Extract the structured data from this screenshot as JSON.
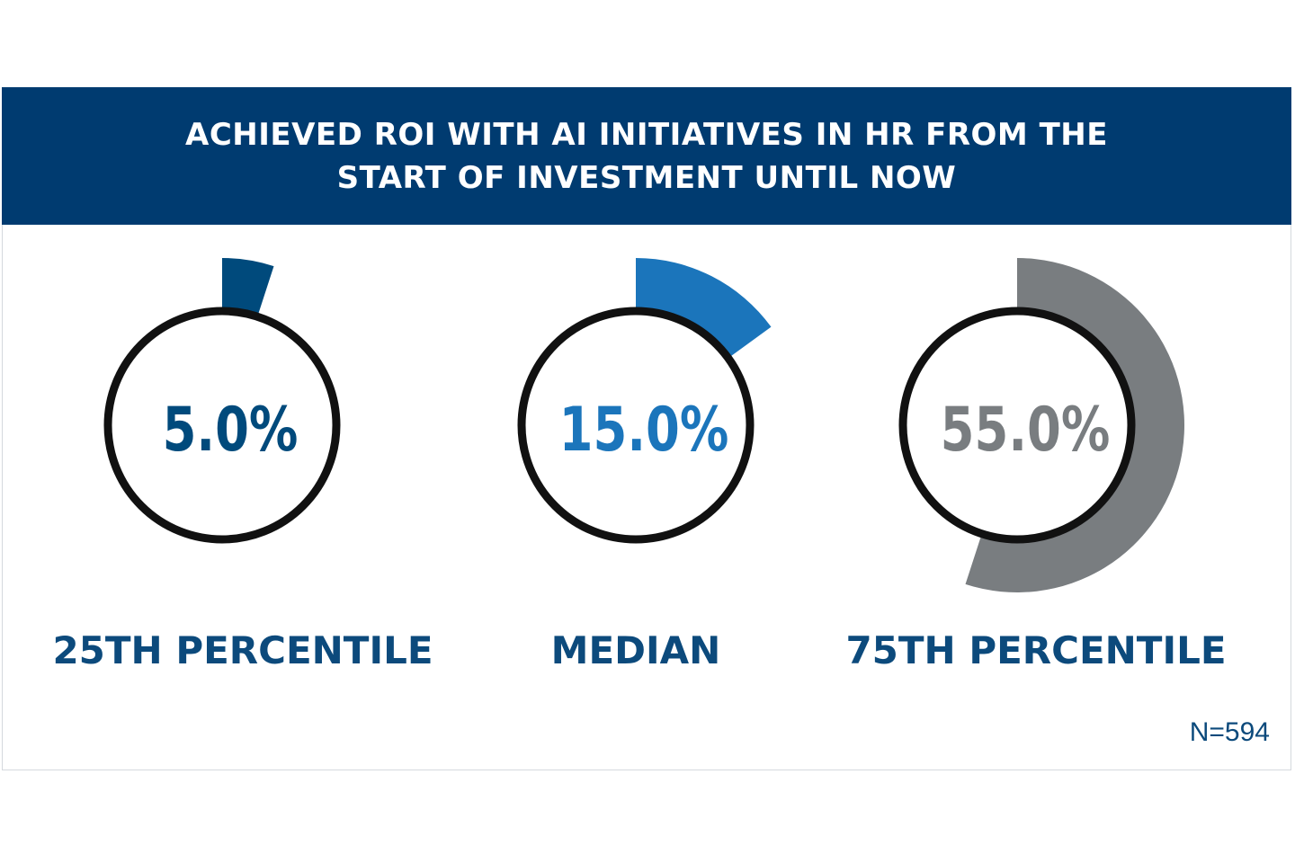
{
  "title_lines": [
    "ACHIEVED ROI WITH AI INITIATIVES IN HR FROM THE",
    "START OF INVESTMENT UNTIL NOW"
  ],
  "sample_size": "N=594",
  "colors": {
    "banner": "#003b70",
    "label_text": "#0c4a7c",
    "ring": "#111111",
    "series": [
      "#004a7c",
      "#1b75bb",
      "#797d80"
    ]
  },
  "chart_data": {
    "type": "pie",
    "title": "ACHIEVED ROI WITH AI INITIATIVES IN HR FROM THE START OF INVESTMENT UNTIL NOW",
    "categories": [
      "25TH PERCENTILE",
      "MEDIAN",
      "75TH PERCENTILE"
    ],
    "values": [
      5.0,
      15.0,
      55.0
    ],
    "value_labels": [
      "5.0%",
      "15.0%",
      "55.0%"
    ],
    "unit": "%",
    "scale_max": 100
  }
}
